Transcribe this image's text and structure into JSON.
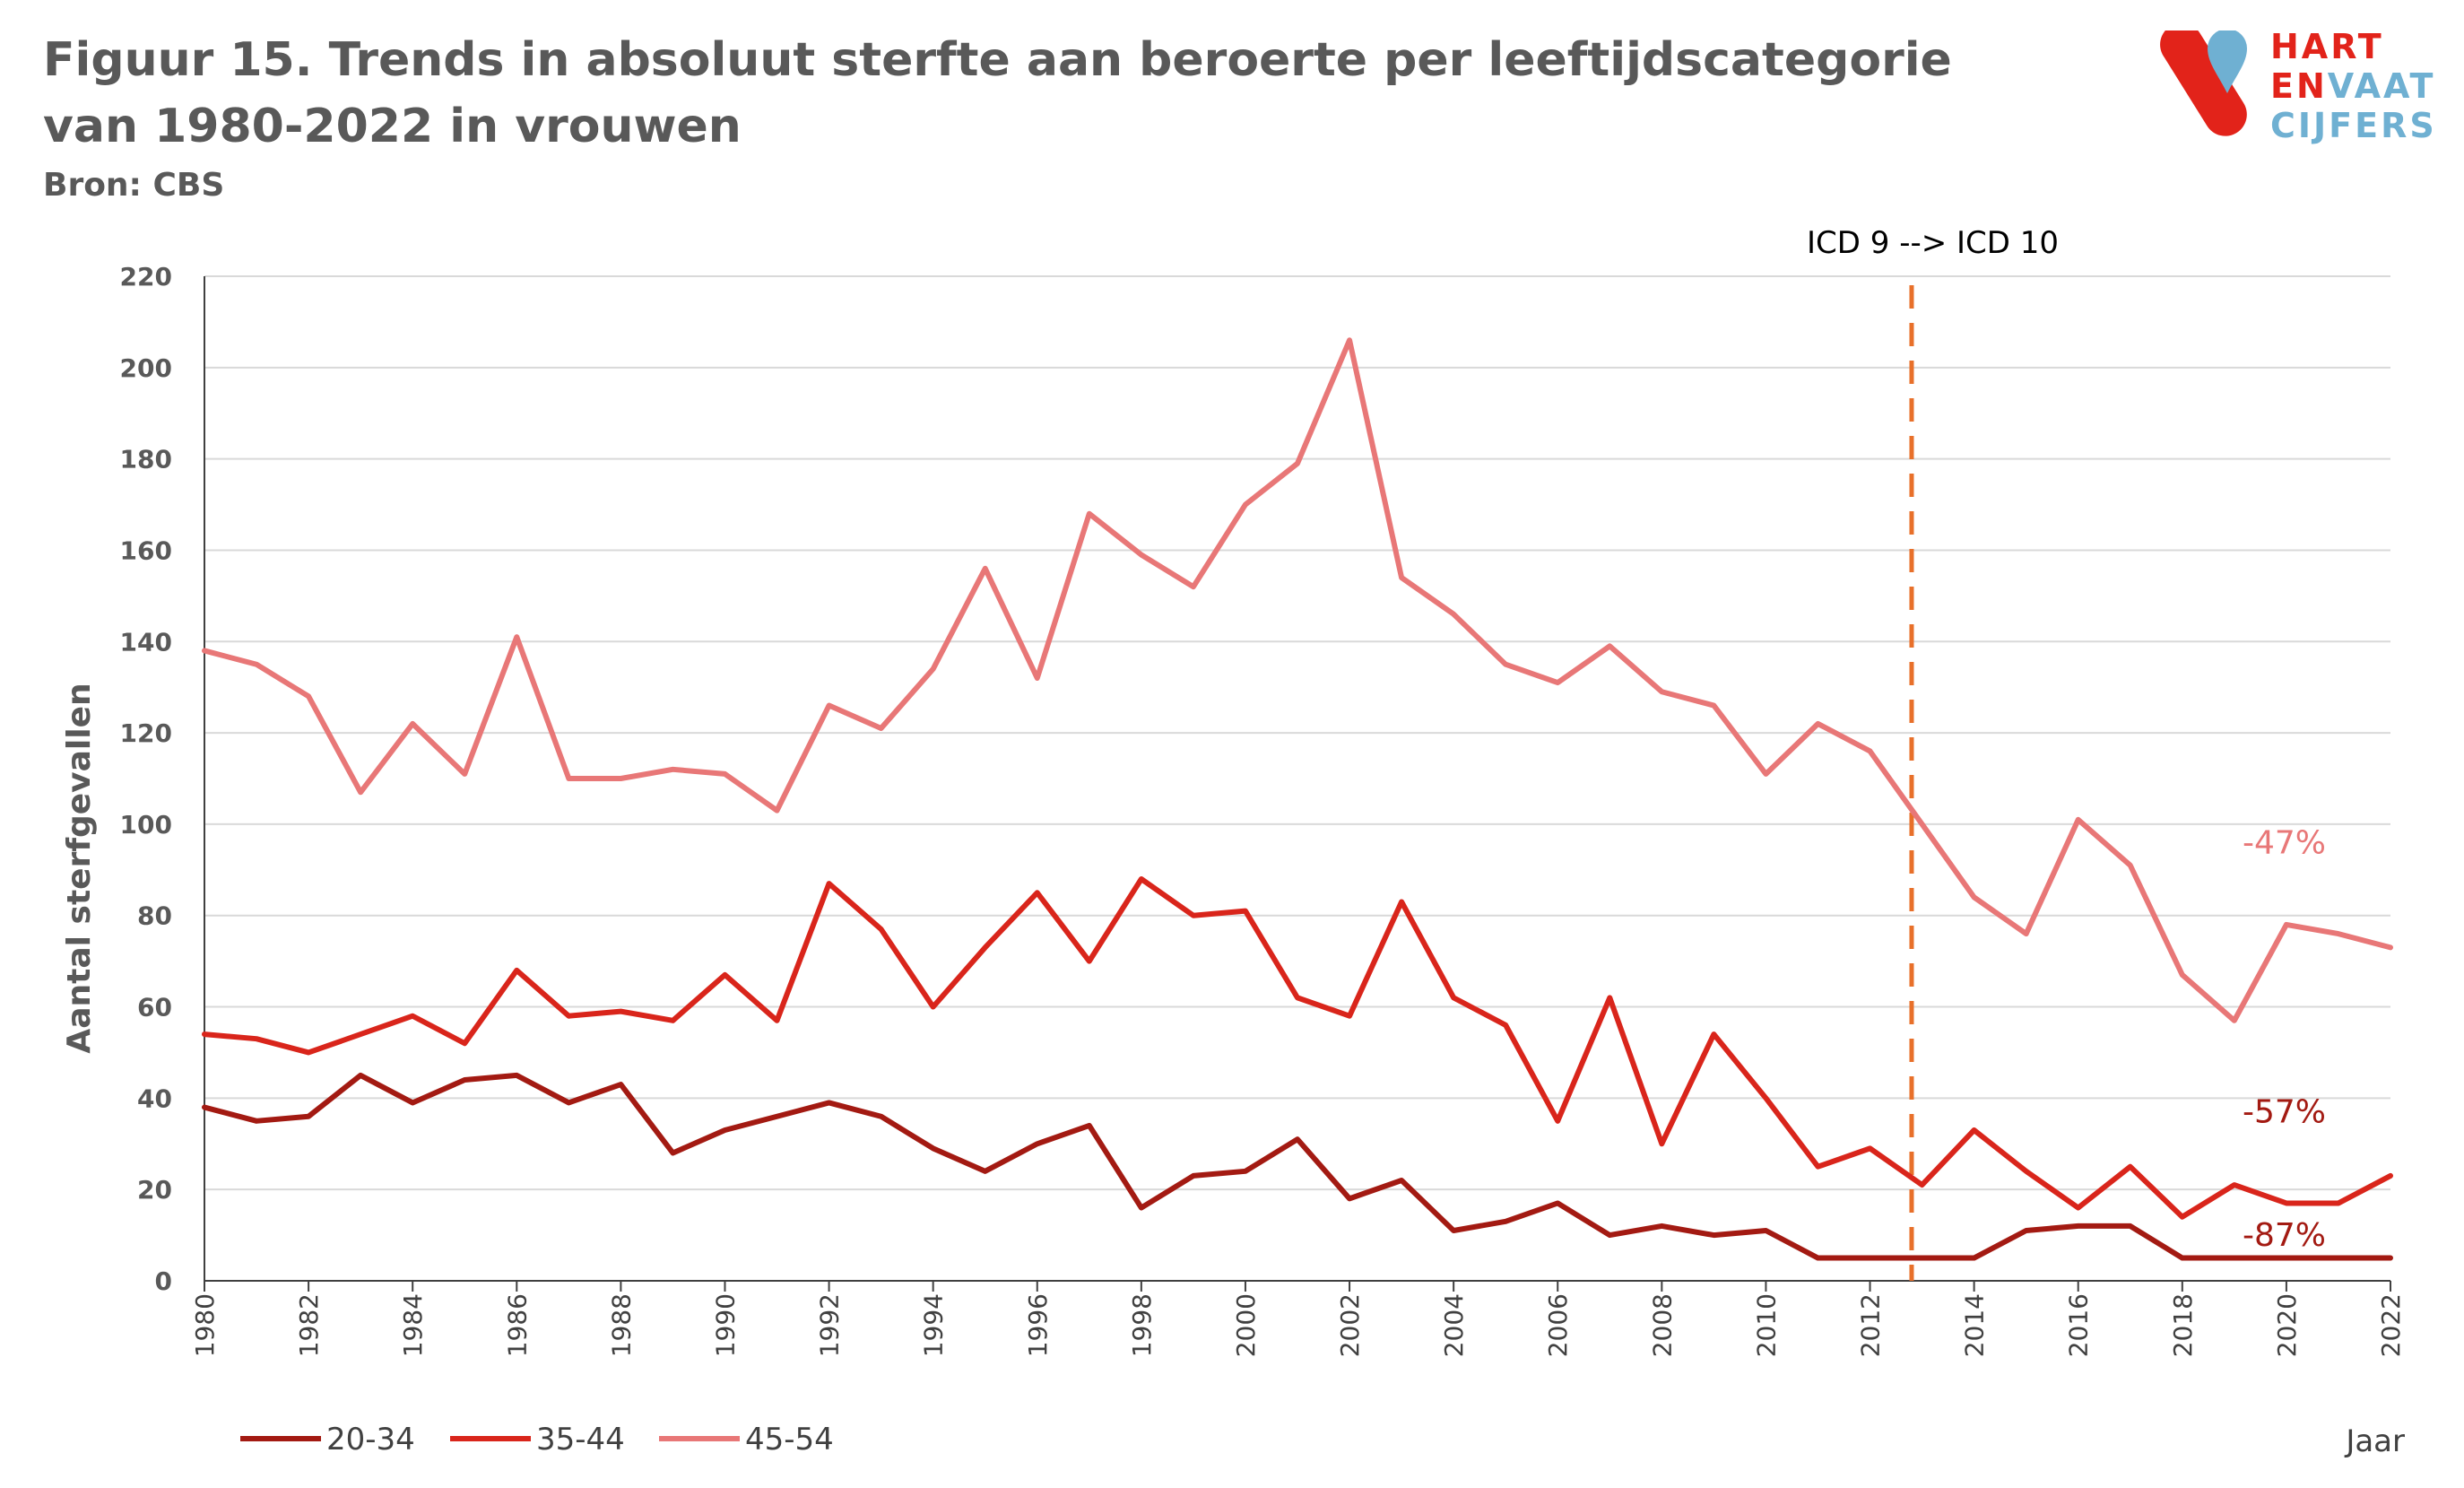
{
  "header": {
    "title": "Figuur 15. Trends in absoluut sterfte aan beroerte per leeftijdscategorie van 1980-2022 in vrouwen",
    "source": "Bron: CBS"
  },
  "logo": {
    "line1": "HART",
    "line2a": "EN",
    "line2b": "VAAT",
    "line3": "CIJFERS",
    "red": "#e2231a",
    "blue": "#6fb0d2"
  },
  "chart_data": {
    "type": "line",
    "ylabel": "Aantal sterfgevallen",
    "xlabel": "Jaar",
    "ylim": [
      0,
      220
    ],
    "yticks": [
      0,
      20,
      40,
      60,
      80,
      100,
      120,
      140,
      160,
      180,
      200,
      220
    ],
    "xlim": [
      1980,
      2022
    ],
    "xtick_labels": [
      "1980",
      "1982",
      "1984",
      "1986",
      "1988",
      "1990",
      "1992",
      "1994",
      "1996",
      "1998",
      "2000",
      "2002",
      "2004",
      "2006",
      "2008",
      "2010",
      "2012",
      "2014",
      "2016",
      "2018",
      "2020",
      "2022"
    ],
    "grid": "horizontal",
    "legend": "bottom-left",
    "x": [
      1980,
      1981,
      1982,
      1983,
      1984,
      1985,
      1986,
      1987,
      1988,
      1989,
      1990,
      1991,
      1992,
      1993,
      1994,
      1995,
      1996,
      1997,
      1998,
      1999,
      2000,
      2001,
      2002,
      2003,
      2004,
      2005,
      2006,
      2007,
      2008,
      2009,
      2010,
      2011,
      2012,
      2013,
      2014,
      2015,
      2016,
      2017,
      2018,
      2019,
      2020,
      2021,
      2022
    ],
    "series": [
      {
        "name": "20-34",
        "color": "#a31a12",
        "values": [
          38,
          35,
          36,
          45,
          39,
          44,
          45,
          39,
          43,
          28,
          33,
          36,
          39,
          36,
          29,
          24,
          30,
          34,
          16,
          23,
          24,
          31,
          18,
          22,
          11,
          13,
          17,
          10,
          12,
          10,
          11,
          5,
          5,
          5,
          5,
          11,
          12,
          12,
          5,
          5,
          5,
          5,
          5
        ]
      },
      {
        "name": "35-44",
        "color": "#d9251b",
        "values": [
          54,
          53,
          50,
          54,
          58,
          52,
          68,
          58,
          59,
          57,
          67,
          57,
          87,
          77,
          60,
          73,
          85,
          70,
          88,
          80,
          81,
          62,
          58,
          83,
          62,
          56,
          35,
          62,
          30,
          54,
          40,
          25,
          29,
          21,
          33,
          24,
          16,
          25,
          14,
          21,
          17,
          17,
          23
        ]
      },
      {
        "name": "45-54",
        "color": "#e87777",
        "values": [
          138,
          135,
          128,
          107,
          122,
          111,
          141,
          110,
          110,
          112,
          111,
          103,
          126,
          121,
          134,
          156,
          132,
          168,
          159,
          152,
          170,
          179,
          206,
          154,
          146,
          135,
          131,
          139,
          129,
          126,
          111,
          122,
          116,
          100,
          84,
          76,
          101,
          91,
          67,
          57,
          78,
          76,
          73
        ]
      }
    ],
    "annotations": [
      {
        "text": "-47%",
        "series": "45-54",
        "color": "#e87777",
        "y": 96
      },
      {
        "text": "-57%",
        "series": "35-44",
        "color": "#a31a12",
        "y": 37
      },
      {
        "text": "-87%",
        "series": "20-34",
        "color": "#a31a12",
        "y": 10
      }
    ],
    "reference_line": {
      "label": "ICD 9  --> ICD 10",
      "x": 2012.8,
      "color": "#e8702a",
      "style": "dashed"
    }
  }
}
